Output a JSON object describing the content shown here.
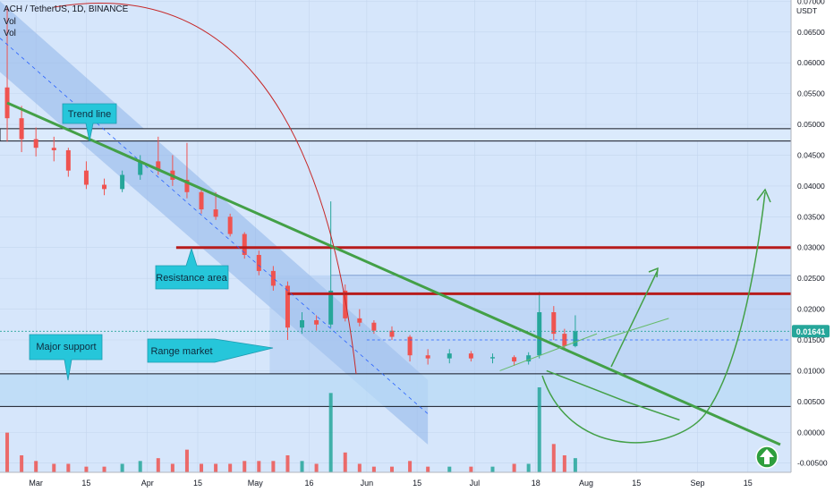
{
  "header": {
    "symbol": "ACH / TetherUS, 1D, BINANCE",
    "vol1": "Vol",
    "vol2": "Vol"
  },
  "price_axis": {
    "unit": "USDT",
    "ticks": [
      "0.07000",
      "0.06500",
      "0.06000",
      "0.05500",
      "0.05000",
      "0.04500",
      "0.04000",
      "0.03500",
      "0.03000",
      "0.02500",
      "0.02000",
      "0.01500",
      "0.01000",
      "0.00500",
      "0.00000",
      "-0.00500"
    ],
    "last_price": "0.01641"
  },
  "time_axis": {
    "labels": [
      "Mar",
      "15",
      "Apr",
      "15",
      "May",
      "16",
      "Jun",
      "15",
      "Jul",
      "18",
      "Aug",
      "15",
      "Sep",
      "15"
    ]
  },
  "annotations": {
    "trend_line": "Trend line",
    "resistance_area": "Resistance area",
    "major_support": "Major support",
    "range_market": "Range market"
  },
  "colors": {
    "background": "#ffffff",
    "chart_bg": "#d6e6fb",
    "candle_up": "#26a69a",
    "candle_down": "#ef5350",
    "trend_line": "#43a047",
    "resistance_line": "#b71c1c",
    "callout_fill": "#26c6da",
    "channel_fill": "#90b4ea",
    "zone_fill": "#b8d9f5",
    "price_badge": "#26a69a",
    "arrow_button": "#2e9e3d"
  },
  "chart_data": {
    "type": "candlestick",
    "title": "ACH / TetherUS, 1D, BINANCE",
    "ylabel": "USDT",
    "ylim": [
      -0.0065,
      0.0702
    ],
    "x_range": [
      "2022-02-19",
      "2022-09-27"
    ],
    "last_close": 0.01641,
    "levels": {
      "resistance_zone": [
        0.0473,
        0.0493
      ],
      "resistance_upper": 0.03,
      "resistance_lower": 0.0225,
      "range_top": 0.0255,
      "support_top": 0.0095,
      "support_bottom": 0.0042
    },
    "trend_line": [
      {
        "x": "2022-02-21",
        "y": 0.0535
      },
      {
        "x": "2022-09-24",
        "y": -0.002
      }
    ],
    "ohlc": [
      {
        "x": "2022-02-21",
        "o": 0.056,
        "h": 0.069,
        "l": 0.0472,
        "c": 0.051
      },
      {
        "x": "2022-02-25",
        "o": 0.051,
        "h": 0.053,
        "l": 0.0455,
        "c": 0.0476
      },
      {
        "x": "2022-03-01",
        "o": 0.0476,
        "h": 0.0495,
        "l": 0.0448,
        "c": 0.0462
      },
      {
        "x": "2022-03-06",
        "o": 0.0462,
        "h": 0.048,
        "l": 0.044,
        "c": 0.0458
      },
      {
        "x": "2022-03-10",
        "o": 0.0458,
        "h": 0.0462,
        "l": 0.0415,
        "c": 0.0425
      },
      {
        "x": "2022-03-15",
        "o": 0.0425,
        "h": 0.044,
        "l": 0.0395,
        "c": 0.0402
      },
      {
        "x": "2022-03-20",
        "o": 0.0402,
        "h": 0.0412,
        "l": 0.0385,
        "c": 0.0395
      },
      {
        "x": "2022-03-25",
        "o": 0.0395,
        "h": 0.0425,
        "l": 0.039,
        "c": 0.0418
      },
      {
        "x": "2022-03-30",
        "o": 0.0418,
        "h": 0.045,
        "l": 0.041,
        "c": 0.044
      },
      {
        "x": "2022-04-04",
        "o": 0.044,
        "h": 0.048,
        "l": 0.0418,
        "c": 0.0425
      },
      {
        "x": "2022-04-08",
        "o": 0.0425,
        "h": 0.045,
        "l": 0.04,
        "c": 0.041
      },
      {
        "x": "2022-04-12",
        "o": 0.041,
        "h": 0.047,
        "l": 0.038,
        "c": 0.039
      },
      {
        "x": "2022-04-16",
        "o": 0.039,
        "h": 0.0395,
        "l": 0.0355,
        "c": 0.0362
      },
      {
        "x": "2022-04-20",
        "o": 0.0362,
        "h": 0.039,
        "l": 0.0345,
        "c": 0.035
      },
      {
        "x": "2022-04-24",
        "o": 0.035,
        "h": 0.0355,
        "l": 0.0318,
        "c": 0.0322
      },
      {
        "x": "2022-04-28",
        "o": 0.0322,
        "h": 0.0325,
        "l": 0.0282,
        "c": 0.0288
      },
      {
        "x": "2022-05-02",
        "o": 0.0288,
        "h": 0.0295,
        "l": 0.0255,
        "c": 0.0262
      },
      {
        "x": "2022-05-06",
        "o": 0.0262,
        "h": 0.027,
        "l": 0.023,
        "c": 0.0238
      },
      {
        "x": "2022-05-10",
        "o": 0.0238,
        "h": 0.0245,
        "l": 0.015,
        "c": 0.017
      },
      {
        "x": "2022-05-14",
        "o": 0.017,
        "h": 0.0195,
        "l": 0.016,
        "c": 0.0182
      },
      {
        "x": "2022-05-18",
        "o": 0.0182,
        "h": 0.019,
        "l": 0.0165,
        "c": 0.0175
      },
      {
        "x": "2022-05-22",
        "o": 0.0175,
        "h": 0.0375,
        "l": 0.017,
        "c": 0.023
      },
      {
        "x": "2022-05-26",
        "o": 0.023,
        "h": 0.024,
        "l": 0.018,
        "c": 0.0185
      },
      {
        "x": "2022-05-30",
        "o": 0.0185,
        "h": 0.02,
        "l": 0.0172,
        "c": 0.0178
      },
      {
        "x": "2022-06-03",
        "o": 0.0178,
        "h": 0.0182,
        "l": 0.016,
        "c": 0.0165
      },
      {
        "x": "2022-06-08",
        "o": 0.0165,
        "h": 0.0172,
        "l": 0.015,
        "c": 0.0155
      },
      {
        "x": "2022-06-13",
        "o": 0.0155,
        "h": 0.0158,
        "l": 0.0115,
        "c": 0.0125
      },
      {
        "x": "2022-06-18",
        "o": 0.0125,
        "h": 0.0135,
        "l": 0.011,
        "c": 0.012
      },
      {
        "x": "2022-06-24",
        "o": 0.012,
        "h": 0.0135,
        "l": 0.0112,
        "c": 0.0128
      },
      {
        "x": "2022-06-30",
        "o": 0.0128,
        "h": 0.0132,
        "l": 0.0115,
        "c": 0.012
      },
      {
        "x": "2022-07-06",
        "o": 0.012,
        "h": 0.0128,
        "l": 0.0112,
        "c": 0.0122
      },
      {
        "x": "2022-07-12",
        "o": 0.0122,
        "h": 0.0125,
        "l": 0.0108,
        "c": 0.0115
      },
      {
        "x": "2022-07-16",
        "o": 0.0115,
        "h": 0.013,
        "l": 0.011,
        "c": 0.0125
      },
      {
        "x": "2022-07-19",
        "o": 0.0125,
        "h": 0.0228,
        "l": 0.012,
        "c": 0.0195
      },
      {
        "x": "2022-07-23",
        "o": 0.0195,
        "h": 0.0205,
        "l": 0.015,
        "c": 0.016
      },
      {
        "x": "2022-07-26",
        "o": 0.016,
        "h": 0.0168,
        "l": 0.0135,
        "c": 0.014
      },
      {
        "x": "2022-07-29",
        "o": 0.014,
        "h": 0.019,
        "l": 0.0138,
        "c": 0.0164
      }
    ],
    "volume": [
      {
        "x": "2022-02-21",
        "v": 14
      },
      {
        "x": "2022-02-25",
        "v": 6
      },
      {
        "x": "2022-03-01",
        "v": 4
      },
      {
        "x": "2022-03-06",
        "v": 3
      },
      {
        "x": "2022-03-10",
        "v": 3
      },
      {
        "x": "2022-03-15",
        "v": 2
      },
      {
        "x": "2022-03-20",
        "v": 2
      },
      {
        "x": "2022-03-25",
        "v": 3
      },
      {
        "x": "2022-03-30",
        "v": 4
      },
      {
        "x": "2022-04-04",
        "v": 5
      },
      {
        "x": "2022-04-08",
        "v": 3
      },
      {
        "x": "2022-04-12",
        "v": 8
      },
      {
        "x": "2022-04-16",
        "v": 3
      },
      {
        "x": "2022-04-20",
        "v": 3
      },
      {
        "x": "2022-04-24",
        "v": 3
      },
      {
        "x": "2022-04-28",
        "v": 4
      },
      {
        "x": "2022-05-02",
        "v": 4
      },
      {
        "x": "2022-05-06",
        "v": 4
      },
      {
        "x": "2022-05-10",
        "v": 6
      },
      {
        "x": "2022-05-14",
        "v": 4
      },
      {
        "x": "2022-05-18",
        "v": 3
      },
      {
        "x": "2022-05-22",
        "v": 28
      },
      {
        "x": "2022-05-26",
        "v": 7
      },
      {
        "x": "2022-05-30",
        "v": 3
      },
      {
        "x": "2022-06-03",
        "v": 2
      },
      {
        "x": "2022-06-08",
        "v": 2
      },
      {
        "x": "2022-06-13",
        "v": 4
      },
      {
        "x": "2022-06-18",
        "v": 2
      },
      {
        "x": "2022-06-24",
        "v": 2
      },
      {
        "x": "2022-06-30",
        "v": 2
      },
      {
        "x": "2022-07-06",
        "v": 2
      },
      {
        "x": "2022-07-12",
        "v": 3
      },
      {
        "x": "2022-07-16",
        "v": 3
      },
      {
        "x": "2022-07-19",
        "v": 30
      },
      {
        "x": "2022-07-23",
        "v": 10
      },
      {
        "x": "2022-07-26",
        "v": 6
      },
      {
        "x": "2022-07-29",
        "v": 5
      }
    ]
  }
}
